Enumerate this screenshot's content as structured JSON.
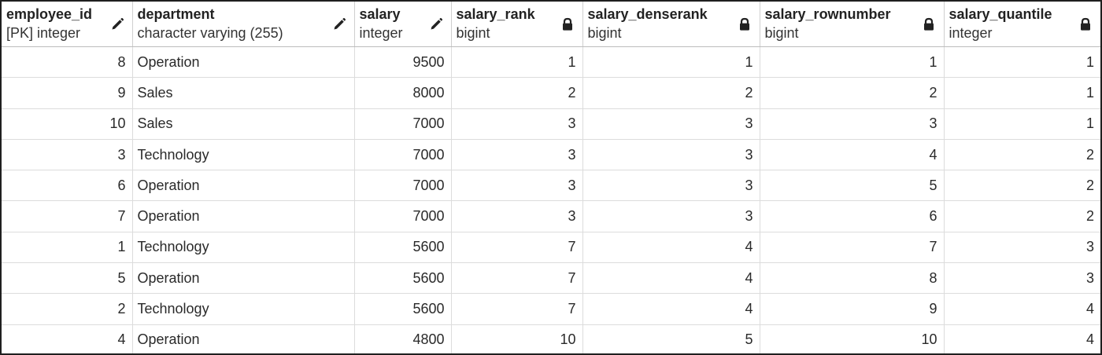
{
  "columns": [
    {
      "name": "employee_id",
      "type": "[PK] integer",
      "icon": "pencil-icon",
      "align": "right",
      "key": "employee_id"
    },
    {
      "name": "department",
      "type": "character varying (255)",
      "icon": "pencil-icon",
      "align": "left",
      "key": "department"
    },
    {
      "name": "salary",
      "type": "integer",
      "icon": "pencil-icon",
      "align": "right",
      "key": "salary"
    },
    {
      "name": "salary_rank",
      "type": "bigint",
      "icon": "lock-icon",
      "align": "right",
      "key": "salary_rank"
    },
    {
      "name": "salary_denserank",
      "type": "bigint",
      "icon": "lock-icon",
      "align": "right",
      "key": "salary_denserank"
    },
    {
      "name": "salary_rownumber",
      "type": "bigint",
      "icon": "lock-icon",
      "align": "right",
      "key": "salary_rownumber"
    },
    {
      "name": "salary_quantile",
      "type": "integer",
      "icon": "lock-icon",
      "align": "right",
      "key": "salary_quantile"
    }
  ],
  "rows": [
    {
      "employee_id": "8",
      "department": "Operation",
      "salary": "9500",
      "salary_rank": "1",
      "salary_denserank": "1",
      "salary_rownumber": "1",
      "salary_quantile": "1"
    },
    {
      "employee_id": "9",
      "department": "Sales",
      "salary": "8000",
      "salary_rank": "2",
      "salary_denserank": "2",
      "salary_rownumber": "2",
      "salary_quantile": "1"
    },
    {
      "employee_id": "10",
      "department": "Sales",
      "salary": "7000",
      "salary_rank": "3",
      "salary_denserank": "3",
      "salary_rownumber": "3",
      "salary_quantile": "1"
    },
    {
      "employee_id": "3",
      "department": "Technology",
      "salary": "7000",
      "salary_rank": "3",
      "salary_denserank": "3",
      "salary_rownumber": "4",
      "salary_quantile": "2"
    },
    {
      "employee_id": "6",
      "department": "Operation",
      "salary": "7000",
      "salary_rank": "3",
      "salary_denserank": "3",
      "salary_rownumber": "5",
      "salary_quantile": "2"
    },
    {
      "employee_id": "7",
      "department": "Operation",
      "salary": "7000",
      "salary_rank": "3",
      "salary_denserank": "3",
      "salary_rownumber": "6",
      "salary_quantile": "2"
    },
    {
      "employee_id": "1",
      "department": "Technology",
      "salary": "5600",
      "salary_rank": "7",
      "salary_denserank": "4",
      "salary_rownumber": "7",
      "salary_quantile": "3"
    },
    {
      "employee_id": "5",
      "department": "Operation",
      "salary": "5600",
      "salary_rank": "7",
      "salary_denserank": "4",
      "salary_rownumber": "8",
      "salary_quantile": "3"
    },
    {
      "employee_id": "2",
      "department": "Technology",
      "salary": "5600",
      "salary_rank": "7",
      "salary_denserank": "4",
      "salary_rownumber": "9",
      "salary_quantile": "4"
    },
    {
      "employee_id": "4",
      "department": "Operation",
      "salary": "4800",
      "salary_rank": "10",
      "salary_denserank": "5",
      "salary_rownumber": "10",
      "salary_quantile": "4"
    }
  ],
  "colors": {
    "border": "#1f1f1f",
    "grid_line": "#dcdcdc",
    "text": "#222222",
    "icon": "#222222"
  }
}
